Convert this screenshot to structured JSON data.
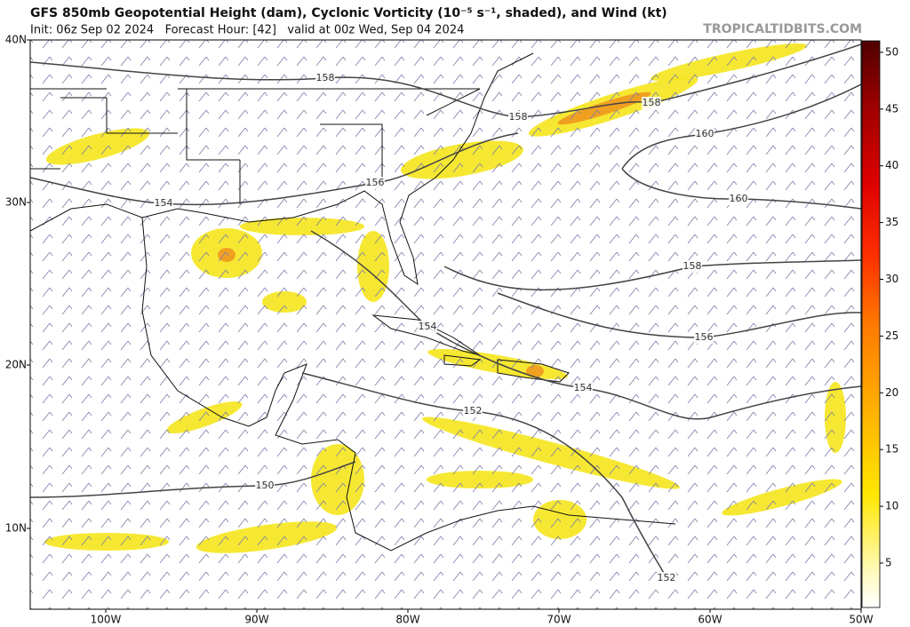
{
  "header": {
    "title": "GFS 850mb Geopotential Height (dam), Cyclonic Vorticity (10⁻⁵ s⁻¹, shaded), and Wind (kt)",
    "subtitle": "Init: 06z Sep 02 2024   Forecast Hour: [42]   valid at 00z Wed, Sep 04 2024",
    "watermark": "TROPICALTIDBITS.COM"
  },
  "map": {
    "lat_labels": [
      "40N",
      "30N",
      "20N",
      "10N"
    ],
    "lon_labels": [
      "100W",
      "90W",
      "80W",
      "70W",
      "60W",
      "50W"
    ],
    "contour_labels": [
      158,
      158,
      158,
      160,
      160,
      156,
      154,
      158,
      156,
      154,
      154,
      152,
      150,
      152
    ]
  },
  "colorbar": {
    "ticks": [
      5,
      10,
      15,
      20,
      25,
      30,
      35,
      40,
      45,
      50
    ]
  }
}
